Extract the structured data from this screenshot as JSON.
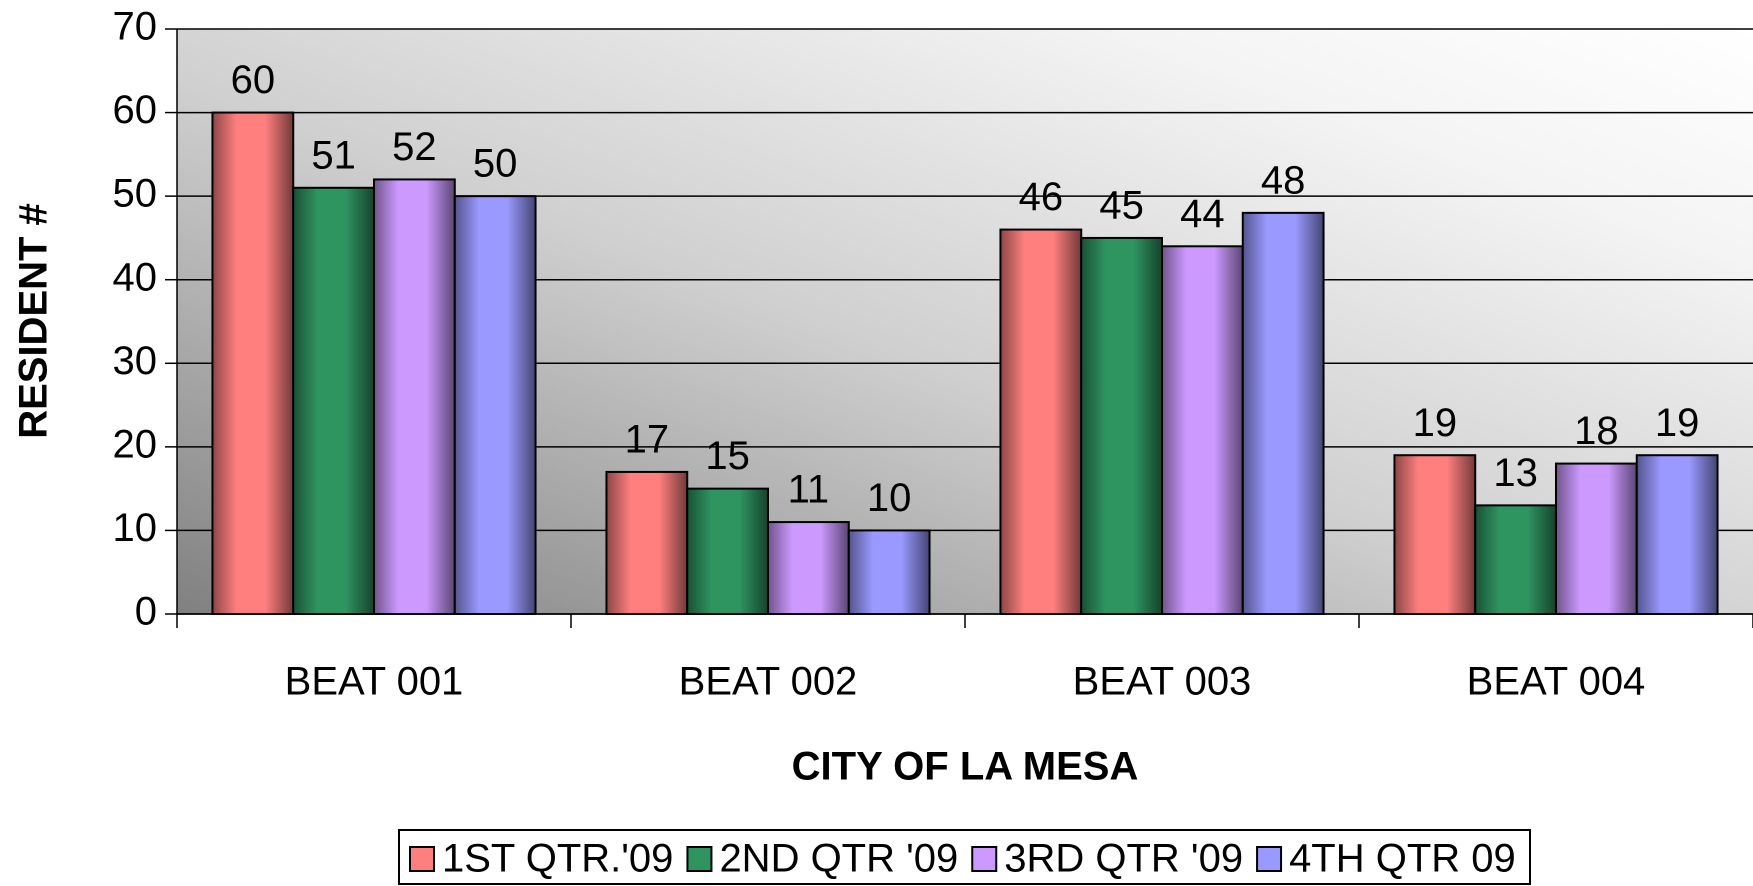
{
  "chart_data": {
    "type": "bar",
    "x_label": "CITY OF LA MESA",
    "y_label": "RESIDENT #",
    "categories": [
      "BEAT 001",
      "BEAT 002",
      "BEAT 003",
      "BEAT 004"
    ],
    "series": [
      {
        "name": "1ST QTR.'09",
        "color": "#ff7f7f",
        "values": [
          60,
          17,
          46,
          19
        ]
      },
      {
        "name": "2ND QTR '09",
        "color": "#2e9460",
        "values": [
          51,
          15,
          45,
          13
        ]
      },
      {
        "name": "3RD QTR '09",
        "color": "#cc99ff",
        "values": [
          52,
          11,
          44,
          18
        ]
      },
      {
        "name": "4TH QTR 09",
        "color": "#9999ff",
        "values": [
          50,
          10,
          48,
          19
        ]
      }
    ],
    "ylim": [
      0,
      70
    ],
    "yticks": [
      0,
      10,
      20,
      30,
      40,
      50,
      60,
      70
    ],
    "grid": true,
    "legend": "bottom"
  }
}
